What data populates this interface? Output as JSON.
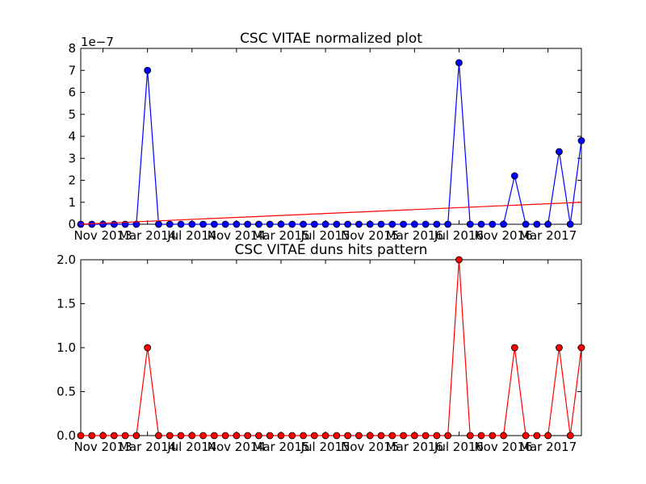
{
  "chart_data": [
    {
      "type": "line",
      "title": "CSC VITAE normalized plot",
      "ylim": [
        0,
        8e-07
      ],
      "y_offset_text": "1e−7",
      "y_ticks": [
        {
          "value": 0,
          "label": "0"
        },
        {
          "value": 1e-07,
          "label": "1"
        },
        {
          "value": 2e-07,
          "label": "2"
        },
        {
          "value": 3e-07,
          "label": "3"
        },
        {
          "value": 4e-07,
          "label": "4"
        },
        {
          "value": 5e-07,
          "label": "5"
        },
        {
          "value": 6e-07,
          "label": "6"
        },
        {
          "value": 7e-07,
          "label": "7"
        },
        {
          "value": 8e-07,
          "label": "8"
        }
      ],
      "x_ticks": [
        {
          "index": 2,
          "label": "Nov 2013"
        },
        {
          "index": 6,
          "label": "Mar 2014"
        },
        {
          "index": 10,
          "label": "Jul 2014"
        },
        {
          "index": 14,
          "label": "Nov 2014"
        },
        {
          "index": 18,
          "label": "Mar 2015"
        },
        {
          "index": 22,
          "label": "Jul 2015"
        },
        {
          "index": 26,
          "label": "Nov 2015"
        },
        {
          "index": 30,
          "label": "Mar 2016"
        },
        {
          "index": 34,
          "label": "Jul 2016"
        },
        {
          "index": 38,
          "label": "Nov 2016"
        },
        {
          "index": 42,
          "label": "Mar 2017"
        }
      ],
      "series": [
        {
          "values": [
            0,
            0,
            0,
            0,
            0,
            0,
            7e-07,
            0,
            0,
            0,
            0,
            0,
            0,
            0,
            0,
            0,
            0,
            0,
            0,
            0,
            0,
            0,
            0,
            0,
            0,
            0,
            0,
            0,
            0,
            0,
            0,
            0,
            0,
            0,
            7.35e-07,
            0,
            0,
            0,
            0,
            2.2e-07,
            0,
            0,
            0,
            3.3e-07,
            0,
            3.8e-07
          ],
          "color": "#0000ff",
          "marker": "circle"
        },
        {
          "values_endpoints": [
            0,
            1e-07
          ],
          "color": "#ff0000",
          "marker": "none"
        }
      ]
    },
    {
      "type": "line",
      "title": "CSC VITAE duns hits pattern",
      "ylim": [
        0,
        2
      ],
      "y_ticks": [
        {
          "value": 0,
          "label": "0.0"
        },
        {
          "value": 0.5,
          "label": "0.5"
        },
        {
          "value": 1.0,
          "label": "1.0"
        },
        {
          "value": 1.5,
          "label": "1.5"
        },
        {
          "value": 2.0,
          "label": "2.0"
        }
      ],
      "x_ticks": [
        {
          "index": 2,
          "label": "Nov 2013"
        },
        {
          "index": 6,
          "label": "Mar 2014"
        },
        {
          "index": 10,
          "label": "Jul 2014"
        },
        {
          "index": 14,
          "label": "Nov 2014"
        },
        {
          "index": 18,
          "label": "Mar 2015"
        },
        {
          "index": 22,
          "label": "Jul 2015"
        },
        {
          "index": 26,
          "label": "Nov 2015"
        },
        {
          "index": 30,
          "label": "Mar 2016"
        },
        {
          "index": 34,
          "label": "Jul 2016"
        },
        {
          "index": 38,
          "label": "Nov 2016"
        },
        {
          "index": 42,
          "label": "Mar 2017"
        }
      ],
      "series": [
        {
          "values": [
            0,
            0,
            0,
            0,
            0,
            0,
            1,
            0,
            0,
            0,
            0,
            0,
            0,
            0,
            0,
            0,
            0,
            0,
            0,
            0,
            0,
            0,
            0,
            0,
            0,
            0,
            0,
            0,
            0,
            0,
            0,
            0,
            0,
            0,
            2,
            0,
            0,
            0,
            0,
            1,
            0,
            0,
            0,
            1,
            0,
            1
          ],
          "color": "#ff0000",
          "marker": "circle"
        }
      ]
    }
  ]
}
